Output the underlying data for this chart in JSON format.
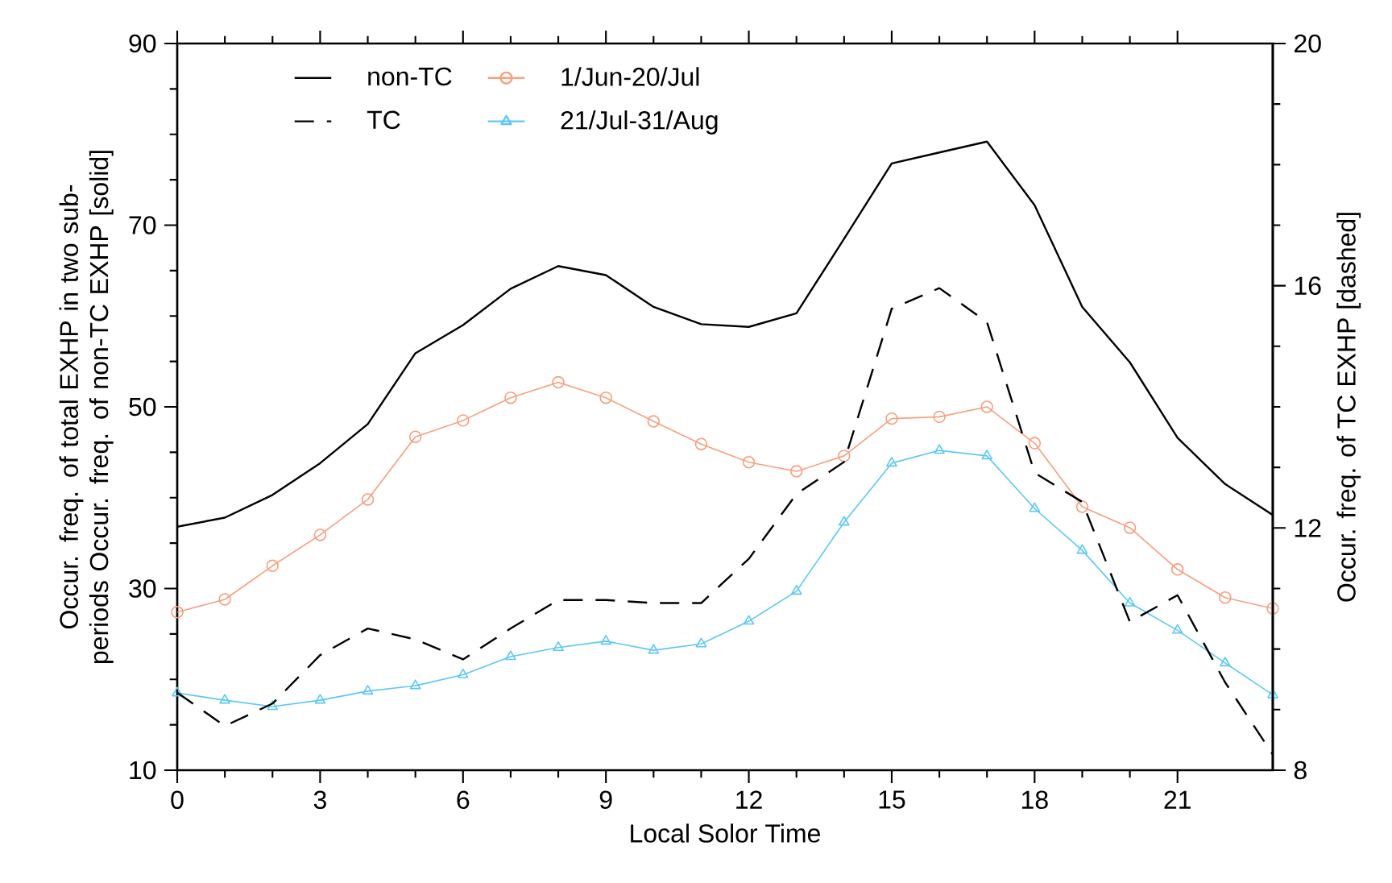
{
  "chart_data": {
    "type": "line",
    "xlabel": "Local Solor Time",
    "ylabel": "Occur. freq. of total EXHP in two sub-periods Occur. freq. of non-TC EXHP [solid]",
    "y2label": "Occur. freq. of TC EXHP [dashed]",
    "x": [
      0,
      1,
      2,
      3,
      4,
      5,
      6,
      7,
      8,
      9,
      10,
      11,
      12,
      13,
      14,
      15,
      16,
      17,
      18,
      19,
      20,
      21,
      22,
      23
    ],
    "xlim": [
      0,
      23
    ],
    "xticks": [
      0,
      3,
      6,
      9,
      12,
      15,
      18,
      21
    ],
    "ylim": [
      10,
      90
    ],
    "yticks": [
      10,
      30,
      50,
      70,
      90
    ],
    "y2lim": [
      8,
      20
    ],
    "y2ticks": [
      8,
      12,
      16,
      20
    ],
    "legend": "top left",
    "series": [
      {
        "name": "non-TC",
        "color": "#000000",
        "line_style": "solid",
        "marker": "none",
        "values": [
          36.8,
          37.8,
          40.3,
          43.8,
          48.1,
          55.9,
          59.0,
          63.0,
          65.5,
          64.5,
          61.0,
          59.1,
          58.8,
          60.3,
          68.5,
          76.8,
          78.0,
          79.2,
          72.2,
          61.0,
          54.9,
          46.6,
          41.5,
          38.1
        ]
      },
      {
        "name": "TC",
        "color": "#000000",
        "line_style": "dashed",
        "marker": "none",
        "axis": "y2",
        "values": [
          9.28,
          8.73,
          9.1,
          9.9,
          10.34,
          10.16,
          9.83,
          10.34,
          10.81,
          10.81,
          10.76,
          10.76,
          11.49,
          12.56,
          13.09,
          15.62,
          15.96,
          15.4,
          12.91,
          12.43,
          10.45,
          10.89,
          9.45,
          8.26
        ]
      },
      {
        "name": "1/Jun-20/Jul",
        "color": "#f79f7f",
        "line_style": "solid",
        "marker": "circle",
        "values": [
          27.4,
          28.8,
          32.5,
          35.9,
          39.8,
          46.7,
          48.5,
          51.0,
          52.7,
          51.0,
          48.4,
          45.9,
          43.9,
          42.9,
          44.6,
          48.7,
          48.9,
          50.0,
          46.0,
          39.0,
          36.7,
          32.1,
          29.0,
          27.8
        ]
      },
      {
        "name": "21/Jul-31/Aug",
        "color": "#5bc8f5",
        "line_style": "solid",
        "marker": "triangle",
        "values": [
          18.5,
          17.7,
          17.0,
          17.7,
          18.7,
          19.3,
          20.5,
          22.5,
          23.5,
          24.2,
          23.2,
          23.9,
          26.4,
          29.7,
          37.3,
          43.8,
          45.2,
          44.6,
          38.8,
          34.2,
          28.4,
          25.4,
          21.8,
          18.3
        ]
      }
    ]
  }
}
